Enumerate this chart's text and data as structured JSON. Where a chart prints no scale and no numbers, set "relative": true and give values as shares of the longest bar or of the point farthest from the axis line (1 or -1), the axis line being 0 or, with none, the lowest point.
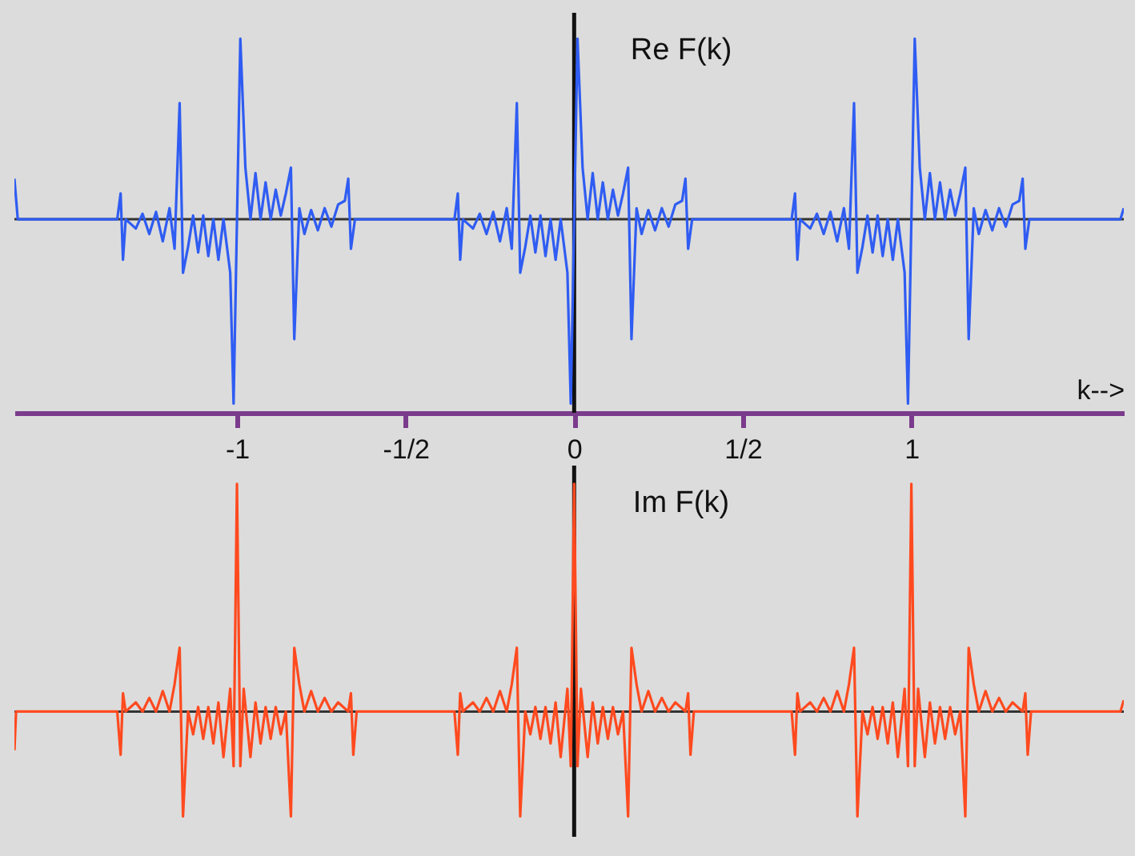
{
  "chart_data": [
    {
      "type": "line",
      "title": "Re F(k)",
      "xlabel": "k-->",
      "relative": true,
      "ref_lines": [
        {
          "axis": "y",
          "value": 0,
          "color": "#333333"
        },
        {
          "axis": "x",
          "value": 0,
          "color": "#111111"
        }
      ],
      "xlim": [
        -1.66,
        1.63
      ],
      "xticks": [
        {
          "value": -1,
          "label": "-1"
        },
        {
          "value": -0.5,
          "label": "-1/2"
        },
        {
          "value": 0,
          "label": "0"
        },
        {
          "value": 0.5,
          "label": "1/2"
        },
        {
          "value": 1,
          "label": "1"
        }
      ],
      "tick_labels": "x",
      "series": [
        {
          "color": "#2f5cf2",
          "x": [
            -1.66,
            -1.65,
            -1.355,
            -1.345,
            -1.338,
            -1.33,
            -1.3,
            -1.28,
            -1.26,
            -1.24,
            -1.22,
            -1.2,
            -1.185,
            -1.17,
            -1.16,
            -1.145,
            -1.13,
            -1.115,
            -1.1,
            -1.085,
            -1.07,
            -1.055,
            -1.04,
            -1.02,
            -1.01,
            -0.99,
            -0.975,
            -0.96,
            -0.945,
            -0.93,
            -0.915,
            -0.9,
            -0.885,
            -0.87,
            -0.855,
            -0.84,
            -0.83,
            -0.815,
            -0.8,
            -0.78,
            -0.76,
            -0.74,
            -0.72,
            -0.7,
            -0.68,
            -0.67,
            -0.662,
            -0.65,
            -0.355,
            -0.345,
            -0.338,
            -0.33,
            -0.3,
            -0.28,
            -0.26,
            -0.24,
            -0.22,
            -0.2,
            -0.185,
            -0.17,
            -0.16,
            -0.145,
            -0.13,
            -0.115,
            -0.1,
            -0.085,
            -0.07,
            -0.055,
            -0.04,
            -0.02,
            -0.01,
            0.01,
            0.025,
            0.04,
            0.055,
            0.07,
            0.085,
            0.1,
            0.115,
            0.13,
            0.145,
            0.16,
            0.17,
            0.185,
            0.2,
            0.22,
            0.24,
            0.26,
            0.28,
            0.3,
            0.32,
            0.33,
            0.338,
            0.35,
            0.645,
            0.655,
            0.662,
            0.67,
            0.7,
            0.72,
            0.74,
            0.76,
            0.78,
            0.8,
            0.815,
            0.83,
            0.84,
            0.855,
            0.87,
            0.885,
            0.9,
            0.915,
            0.93,
            0.945,
            0.96,
            0.98,
            0.99,
            1.01,
            1.025,
            1.04,
            1.055,
            1.07,
            1.085,
            1.1,
            1.115,
            1.13,
            1.145,
            1.16,
            1.17,
            1.185,
            1.2,
            1.22,
            1.24,
            1.26,
            1.28,
            1.3,
            1.32,
            1.33,
            1.338,
            1.35,
            1.62,
            1.63
          ],
          "values": [
            0.22,
            0,
            0,
            0.14,
            -0.22,
            0,
            -0.05,
            0.03,
            -0.08,
            0.04,
            -0.12,
            0.06,
            -0.16,
            0.63,
            -0.29,
            -0.15,
            0.02,
            -0.18,
            0.02,
            -0.2,
            0,
            -0.22,
            0,
            -0.29,
            -1,
            0.98,
            0.28,
            0,
            0.25,
            0,
            0.2,
            0,
            0.16,
            0.02,
            0.14,
            0.28,
            -0.65,
            0.06,
            -0.08,
            0.05,
            -0.06,
            0.06,
            -0.04,
            0.08,
            0.1,
            0.22,
            -0.16,
            0,
            0,
            0.14,
            -0.22,
            0,
            -0.05,
            0.03,
            -0.08,
            0.04,
            -0.12,
            0.06,
            -0.16,
            0.63,
            -0.29,
            -0.15,
            0.02,
            -0.18,
            0.02,
            -0.2,
            0,
            -0.22,
            0,
            -0.29,
            -1,
            0.98,
            0.28,
            0,
            0.25,
            0,
            0.2,
            0,
            0.16,
            0.02,
            0.14,
            0.28,
            -0.65,
            0.06,
            -0.08,
            0.05,
            -0.06,
            0.06,
            -0.04,
            0.08,
            0.1,
            0.22,
            -0.16,
            0,
            0,
            0.14,
            -0.22,
            0,
            -0.05,
            0.03,
            -0.08,
            0.04,
            -0.12,
            0.06,
            -0.16,
            0.63,
            -0.29,
            -0.15,
            0.02,
            -0.18,
            0.02,
            -0.2,
            0,
            -0.22,
            0,
            -0.29,
            -1,
            0.98,
            0.28,
            0,
            0.25,
            0,
            0.2,
            0,
            0.16,
            0.02,
            0.14,
            0.28,
            -0.65,
            0.06,
            -0.08,
            0.05,
            -0.06,
            0.06,
            -0.04,
            0.08,
            0.1,
            0.22,
            -0.16,
            0,
            0,
            0.06
          ]
        }
      ]
    },
    {
      "type": "line",
      "title": "Im F(k)",
      "relative": true,
      "ref_lines": [
        {
          "axis": "y",
          "value": 0,
          "color": "#333333"
        },
        {
          "axis": "x",
          "value": 0,
          "color": "#111111"
        }
      ],
      "xlim": [
        -1.66,
        1.63
      ],
      "tick_labels": false,
      "series": [
        {
          "color": "#ff4a1f",
          "x": [
            -1.66,
            -1.655,
            -1.355,
            -1.345,
            -1.338,
            -1.33,
            -1.3,
            -1.28,
            -1.26,
            -1.24,
            -1.22,
            -1.2,
            -1.185,
            -1.17,
            -1.16,
            -1.145,
            -1.13,
            -1.115,
            -1.1,
            -1.085,
            -1.07,
            -1.055,
            -1.04,
            -1.02,
            -1.01,
            -1,
            -0.99,
            -0.98,
            -0.96,
            -0.945,
            -0.93,
            -0.915,
            -0.9,
            -0.885,
            -0.87,
            -0.855,
            -0.84,
            -0.83,
            -0.815,
            -0.8,
            -0.78,
            -0.76,
            -0.74,
            -0.72,
            -0.7,
            -0.67,
            -0.662,
            -0.655,
            -0.645,
            -0.355,
            -0.345,
            -0.338,
            -0.33,
            -0.3,
            -0.28,
            -0.26,
            -0.24,
            -0.22,
            -0.2,
            -0.185,
            -0.17,
            -0.16,
            -0.145,
            -0.13,
            -0.115,
            -0.1,
            -0.085,
            -0.07,
            -0.055,
            -0.04,
            -0.02,
            -0.01,
            0,
            0.01,
            0.02,
            0.04,
            0.055,
            0.07,
            0.085,
            0.1,
            0.115,
            0.13,
            0.145,
            0.16,
            0.17,
            0.185,
            0.2,
            0.22,
            0.24,
            0.26,
            0.28,
            0.3,
            0.33,
            0.338,
            0.345,
            0.355,
            0.645,
            0.655,
            0.662,
            0.67,
            0.7,
            0.72,
            0.74,
            0.76,
            0.78,
            0.8,
            0.815,
            0.83,
            0.84,
            0.855,
            0.87,
            0.885,
            0.9,
            0.915,
            0.93,
            0.945,
            0.96,
            0.98,
            0.99,
            1,
            1.01,
            1.02,
            1.04,
            1.055,
            1.07,
            1.085,
            1.1,
            1.115,
            1.13,
            1.145,
            1.16,
            1.17,
            1.185,
            1.2,
            1.22,
            1.24,
            1.26,
            1.28,
            1.3,
            1.33,
            1.338,
            1.345,
            1.355,
            1.62,
            1.63
          ],
          "values": [
            -0.17,
            0,
            0,
            -0.19,
            0.08,
            0,
            0.04,
            0,
            0.06,
            0,
            0.09,
            0,
            0.12,
            0.28,
            -0.46,
            0,
            -0.1,
            0.02,
            -0.12,
            0.02,
            -0.14,
            0.04,
            -0.2,
            0.1,
            -0.24,
            1,
            -0.24,
            0.1,
            -0.2,
            0.04,
            -0.14,
            0.02,
            -0.12,
            0.02,
            -0.1,
            0,
            -0.46,
            0.28,
            0.12,
            0,
            0.09,
            0,
            0.06,
            0,
            0.04,
            0,
            0.08,
            -0.19,
            0,
            0,
            -0.19,
            0.08,
            0,
            0.04,
            0,
            0.06,
            0,
            0.09,
            0,
            0.12,
            0.28,
            -0.46,
            0,
            -0.1,
            0.02,
            -0.12,
            0.02,
            -0.14,
            0.04,
            -0.2,
            0.1,
            -0.24,
            1,
            -0.24,
            0.1,
            -0.2,
            0.04,
            -0.14,
            0.02,
            -0.12,
            0.02,
            -0.1,
            0,
            -0.46,
            0.28,
            0.12,
            0,
            0.09,
            0,
            0.06,
            0,
            0.04,
            0,
            0.08,
            -0.19,
            0,
            0,
            -0.19,
            0.08,
            0,
            0.04,
            0,
            0.06,
            0,
            0.09,
            0,
            0.12,
            0.28,
            -0.46,
            0,
            -0.1,
            0.02,
            -0.12,
            0.02,
            -0.14,
            0.04,
            -0.2,
            0.1,
            -0.24,
            1,
            -0.24,
            0.1,
            -0.2,
            0.04,
            -0.14,
            0.02,
            -0.12,
            0.02,
            -0.1,
            0,
            -0.46,
            0.28,
            0.12,
            0,
            0.09,
            0,
            0.06,
            0,
            0.04,
            0,
            0.08,
            -0.19,
            0,
            0,
            0.05
          ]
        }
      ]
    }
  ]
}
